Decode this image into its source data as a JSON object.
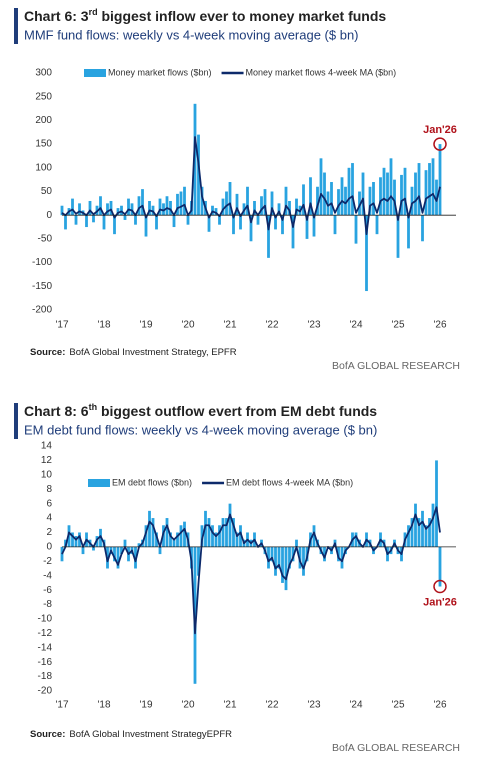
{
  "chart_data": [
    {
      "type": "combo",
      "title": [
        "Chart 6: 3",
        "rd",
        " biggest inflow ever to money market funds"
      ],
      "subtitle": "MMF fund flows: weekly vs 4-week moving average ($ bn)",
      "categories": [
        "'17",
        null,
        null,
        null,
        null,
        null,
        null,
        null,
        null,
        null,
        null,
        null,
        "'18",
        null,
        null,
        null,
        null,
        null,
        null,
        null,
        null,
        null,
        null,
        null,
        "'19",
        null,
        null,
        null,
        null,
        null,
        null,
        null,
        null,
        null,
        null,
        null,
        "'20",
        null,
        null,
        null,
        null,
        null,
        null,
        null,
        null,
        null,
        null,
        null,
        "'21",
        null,
        null,
        null,
        null,
        null,
        null,
        null,
        null,
        null,
        null,
        null,
        "'22",
        null,
        null,
        null,
        null,
        null,
        null,
        null,
        null,
        null,
        null,
        null,
        "'23",
        null,
        null,
        null,
        null,
        null,
        null,
        null,
        null,
        null,
        null,
        null,
        "'24",
        null,
        null,
        null,
        null,
        null,
        null,
        null,
        null,
        null,
        null,
        null,
        "'25",
        null,
        null,
        null,
        null,
        null,
        null,
        null,
        null,
        null,
        null,
        null,
        "'26"
      ],
      "series": [
        {
          "name": "Money market flows ($bn)",
          "color": "#29a3e0",
          "kind": "bar",
          "values": [
            20,
            -30,
            15,
            35,
            -20,
            25,
            10,
            -25,
            30,
            -15,
            20,
            40,
            -30,
            25,
            30,
            -40,
            15,
            20,
            -10,
            35,
            25,
            -20,
            40,
            55,
            -45,
            30,
            20,
            -30,
            35,
            25,
            40,
            30,
            -25,
            45,
            50,
            60,
            -20,
            30,
            235,
            170,
            60,
            30,
            -35,
            20,
            15,
            -20,
            35,
            50,
            70,
            -40,
            45,
            -30,
            25,
            60,
            -55,
            30,
            -20,
            40,
            55,
            -90,
            50,
            -30,
            25,
            -40,
            60,
            30,
            -70,
            35,
            20,
            65,
            -50,
            80,
            -45,
            60,
            120,
            90,
            50,
            70,
            -40,
            55,
            80,
            60,
            100,
            110,
            -60,
            50,
            90,
            -160,
            60,
            70,
            -40,
            80,
            100,
            90,
            120,
            75,
            -90,
            85,
            100,
            -70,
            60,
            90,
            110,
            -55,
            95,
            110,
            120,
            75,
            150
          ]
        },
        {
          "name": "Money market flows 4-week MA ($bn)",
          "color": "#0d2a6b",
          "kind": "line",
          "values": [
            5,
            0,
            8,
            12,
            3,
            8,
            5,
            0,
            10,
            2,
            8,
            15,
            0,
            8,
            12,
            -5,
            5,
            8,
            2,
            12,
            10,
            0,
            15,
            20,
            -5,
            10,
            8,
            -2,
            12,
            10,
            15,
            12,
            0,
            15,
            18,
            22,
            0,
            10,
            165,
            110,
            40,
            15,
            -5,
            8,
            5,
            -2,
            12,
            20,
            25,
            -5,
            15,
            -2,
            10,
            20,
            -15,
            10,
            0,
            12,
            20,
            -30,
            15,
            -5,
            8,
            -10,
            20,
            10,
            -25,
            12,
            8,
            22,
            -10,
            25,
            -5,
            20,
            45,
            35,
            20,
            25,
            5,
            20,
            30,
            25,
            35,
            40,
            5,
            20,
            35,
            -40,
            20,
            25,
            5,
            30,
            35,
            30,
            40,
            30,
            -10,
            30,
            35,
            -5,
            25,
            30,
            40,
            5,
            35,
            40,
            45,
            30,
            60
          ]
        }
      ],
      "ylim": [
        -200,
        300
      ],
      "yticks": [
        -200,
        -150,
        -100,
        -50,
        0,
        50,
        100,
        150,
        200,
        250,
        300
      ],
      "annotation": "Jan'26",
      "source_label": "Source:",
      "source": "BofA Global Investment Strategy, EPFR",
      "footer": "BofA GLOBAL RESEARCH"
    },
    {
      "type": "combo",
      "title": [
        "Chart 8: 6",
        "th",
        " biggest outflow evert from EM debt funds"
      ],
      "subtitle": "EM debt fund flows: weekly vs 4-week moving average ($ bn)",
      "categories": [
        "'17",
        null,
        null,
        null,
        null,
        null,
        null,
        null,
        null,
        null,
        null,
        null,
        "'18",
        null,
        null,
        null,
        null,
        null,
        null,
        null,
        null,
        null,
        null,
        null,
        "'19",
        null,
        null,
        null,
        null,
        null,
        null,
        null,
        null,
        null,
        null,
        null,
        "'20",
        null,
        null,
        null,
        null,
        null,
        null,
        null,
        null,
        null,
        null,
        null,
        "'21",
        null,
        null,
        null,
        null,
        null,
        null,
        null,
        null,
        null,
        null,
        null,
        "'22",
        null,
        null,
        null,
        null,
        null,
        null,
        null,
        null,
        null,
        null,
        null,
        "'23",
        null,
        null,
        null,
        null,
        null,
        null,
        null,
        null,
        null,
        null,
        null,
        "'24",
        null,
        null,
        null,
        null,
        null,
        null,
        null,
        null,
        null,
        null,
        null,
        "'25",
        null,
        null,
        null,
        null,
        null,
        null,
        null,
        null,
        null,
        null,
        null,
        "'26"
      ],
      "series": [
        {
          "name": "EM debt flows ($bn)",
          "color": "#29a3e0",
          "kind": "bar",
          "values": [
            -2,
            1,
            3,
            2,
            1.5,
            2,
            -1,
            2,
            1,
            -0.5,
            1.5,
            2.5,
            1,
            -3,
            -1,
            -2,
            -3,
            -1,
            1,
            -2,
            -1,
            -3,
            0.5,
            1,
            3,
            5,
            4,
            2,
            -1,
            3,
            4,
            2,
            1,
            2,
            3,
            3.5,
            2,
            -3,
            -19,
            -4,
            3,
            5,
            4,
            3,
            2,
            3,
            4,
            4,
            6,
            4,
            2,
            3,
            1,
            2,
            1,
            2,
            0,
            1,
            -1,
            -3,
            -2,
            -4,
            -3,
            -5,
            -6,
            -3,
            -2,
            1,
            -3,
            -4,
            -2,
            2,
            3,
            1,
            -1,
            -2,
            0,
            -1,
            1,
            -2,
            -3,
            -1,
            0,
            2,
            2,
            1,
            0,
            2,
            1,
            -1,
            0,
            2,
            1,
            -2,
            -1,
            1,
            -1,
            -2,
            2,
            3,
            4,
            6,
            4,
            5,
            3,
            4,
            6,
            12,
            -5.5
          ]
        },
        {
          "name": "EM debt flows 4-week MA ($bn)",
          "color": "#0d2a6b",
          "kind": "line",
          "values": [
            -1,
            0,
            2,
            1.5,
            1,
            1.5,
            0,
            1,
            0.5,
            0,
            1,
            1.5,
            0.5,
            -2,
            -0.5,
            -1.5,
            -2.5,
            -1,
            0,
            -1,
            -0.5,
            -2,
            0,
            0.5,
            2,
            3.5,
            3,
            1.5,
            0,
            2,
            3,
            1.5,
            1,
            1.5,
            2,
            2.5,
            1,
            -2,
            -12,
            -5,
            1,
            3,
            3,
            2,
            1.5,
            2,
            3,
            3,
            4.5,
            3,
            1.5,
            2,
            0.5,
            1,
            0.5,
            1,
            0,
            0.5,
            -0.5,
            -2,
            -1.5,
            -3,
            -2.5,
            -4,
            -4.5,
            -2.5,
            -1.5,
            0,
            -2,
            -3,
            -1.5,
            1,
            2,
            0.5,
            -0.5,
            -1.5,
            0,
            -0.5,
            0.5,
            -1.5,
            -2,
            -0.5,
            0,
            1,
            1.5,
            0.5,
            0,
            1,
            0.5,
            -0.5,
            0,
            1,
            0.5,
            -1,
            -0.5,
            0.5,
            -0.5,
            -1,
            1,
            2,
            3,
            4.5,
            3,
            3.5,
            2.5,
            3,
            4,
            5.5,
            2
          ]
        }
      ],
      "ylim": [
        -20,
        14
      ],
      "yticks": [
        -20,
        -18,
        -16,
        -14,
        -12,
        -10,
        -8,
        -6,
        -4,
        -2,
        0,
        2,
        4,
        6,
        8,
        10,
        12,
        14
      ],
      "annotation": "Jan'26",
      "source_label": "Source:",
      "source": "BofA Global Investment StrategyEPFR",
      "footer": "BofA GLOBAL RESEARCH"
    }
  ]
}
